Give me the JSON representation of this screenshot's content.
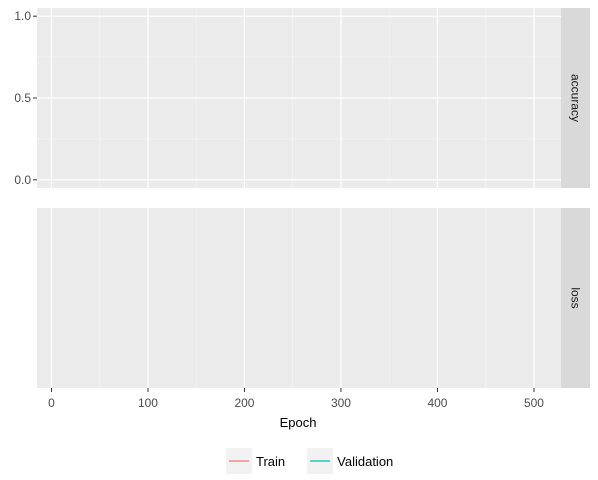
{
  "chart_data": {
    "type": "line",
    "xlabel": "Epoch",
    "x_ticks": [
      0,
      100,
      200,
      300,
      400,
      500
    ],
    "xlim": [
      -15,
      528
    ],
    "grid": true,
    "legend_position": "bottom",
    "facets": [
      {
        "label": "accuracy",
        "ylim": [
          -0.05,
          1.05
        ],
        "y_ticks": [
          0.0,
          0.5,
          1.0
        ],
        "y_tick_labels": [
          "0.0",
          "0.5",
          "1.0"
        ],
        "y_minor": [
          0.25,
          0.75
        ]
      },
      {
        "label": "loss",
        "ylim": [
          0,
          1
        ],
        "y_ticks": [],
        "y_tick_labels": [],
        "y_minor": []
      }
    ],
    "series": [
      {
        "name": "Train",
        "color": "#F8766D",
        "values": []
      },
      {
        "name": "Validation",
        "color": "#00BFC4",
        "values": []
      }
    ]
  }
}
